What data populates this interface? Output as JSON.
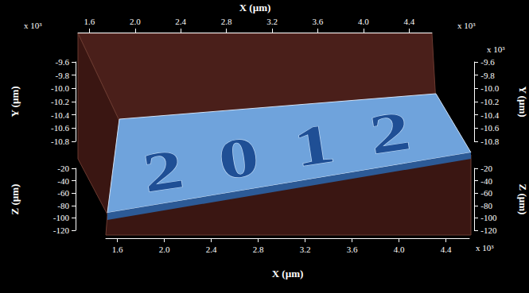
{
  "chart_data": {
    "type": "surface3d",
    "relief_text": "2012",
    "x_label": "X (µm)",
    "y_label": "Y (µm)",
    "z_label": "Z (µm)",
    "exponent_label": "x 10³",
    "xlim": [
      1500,
      4600
    ],
    "xticks": [
      {
        "value": 1600,
        "label": "1.6"
      },
      {
        "value": 2000,
        "label": "2.0"
      },
      {
        "value": 2400,
        "label": "2.4"
      },
      {
        "value": 2800,
        "label": "2.8"
      },
      {
        "value": 3200,
        "label": "3.2"
      },
      {
        "value": 3600,
        "label": "3.6"
      },
      {
        "value": 4000,
        "label": "4.0"
      },
      {
        "value": 4400,
        "label": "4.4"
      }
    ],
    "ylim": [
      -10800,
      -9600
    ],
    "yticks": [
      {
        "value": -9600,
        "label": "-9.6"
      },
      {
        "value": -9800,
        "label": "-9.8"
      },
      {
        "value": -10000,
        "label": "-10.0"
      },
      {
        "value": -10200,
        "label": "-10.2"
      },
      {
        "value": -10400,
        "label": "-10.4"
      },
      {
        "value": -10600,
        "label": "-10.6"
      },
      {
        "value": -10800,
        "label": "-10.8"
      }
    ],
    "zlim": [
      -120,
      -20
    ],
    "zticks": [
      -20,
      -40,
      -60,
      -80,
      -100,
      -120
    ],
    "color": "#6fa3dc"
  }
}
